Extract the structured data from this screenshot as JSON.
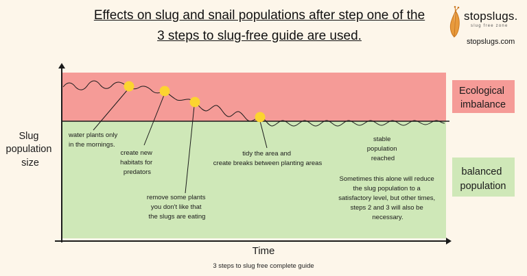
{
  "title_line1": "Effects on slug and snail populations after step one of the",
  "title_line2": "3 steps to slug-free guide are used.",
  "logo": {
    "name": "stopslugs.",
    "tagline": "slug free zone",
    "url": "stopslugs.com",
    "icon": "slug-icon"
  },
  "axes": {
    "ylabel": [
      "Slug",
      "population",
      "size"
    ],
    "xlabel": "Time"
  },
  "zones": {
    "upper_label": [
      "Ecological",
      "imbalance"
    ],
    "lower_label": [
      "balanced",
      "population"
    ]
  },
  "annotations": {
    "water": [
      "water plants only",
      "in the mornings."
    ],
    "habitats": [
      "create new",
      "habitats for",
      "predators"
    ],
    "remove": [
      "remove some plants",
      "you don't like that",
      "the slugs are eating"
    ],
    "tidy": [
      "tidy the area and",
      "create breaks between planting areas"
    ],
    "stable": [
      "stable",
      "population",
      "reached"
    ],
    "note": [
      "Sometimes this alone will reduce",
      "the slug population to a",
      "satisfactory level, but other times,",
      "steps 2 and 3 will also be",
      "necessary."
    ]
  },
  "footer": "3 steps to slug free complete guide",
  "colors": {
    "imbalance_zone": "#f59b97",
    "balanced_zone": "#cfe8b8",
    "marker": "#fcd430",
    "line": "#1a1a1a"
  }
}
